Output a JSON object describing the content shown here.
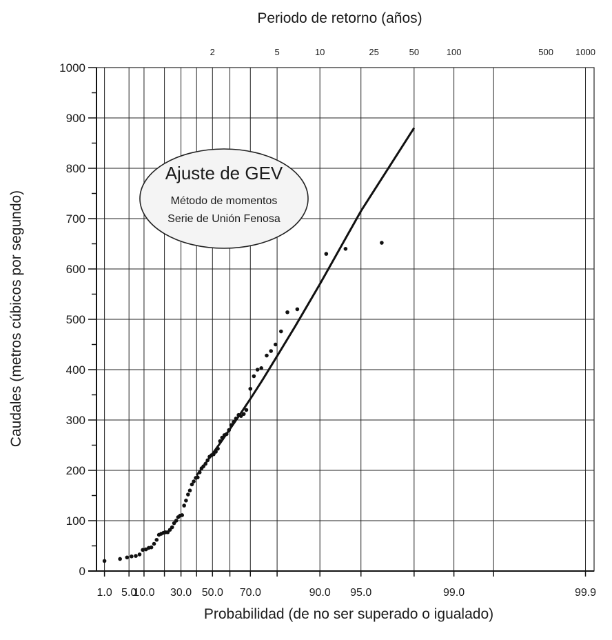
{
  "chart_data": {
    "type": "scatter",
    "title": "Periodo de retorno (años)",
    "xlabel": "Probabilidad (de no ser superado o igualado)",
    "ylabel": "Caudales (metros cúbicos por segundo)",
    "ylim": [
      0,
      1000
    ],
    "y_ticks": [
      0,
      100,
      200,
      300,
      400,
      500,
      600,
      700,
      800,
      900,
      1000
    ],
    "x_scale": "gumbel-probability",
    "grid": true,
    "x_tick_labels": [
      {
        "p": 0.01,
        "label": "1.0"
      },
      {
        "p": 0.05,
        "label": "5.0"
      },
      {
        "p": 0.1,
        "label": "10.0"
      },
      {
        "p": 0.3,
        "label": "30.0"
      },
      {
        "p": 0.5,
        "label": "50.0"
      },
      {
        "p": 0.7,
        "label": "70.0"
      },
      {
        "p": 0.9,
        "label": "90.0"
      },
      {
        "p": 0.95,
        "label": "95.0"
      },
      {
        "p": 0.99,
        "label": "99.0"
      },
      {
        "p": 0.999,
        "label": "99.9"
      }
    ],
    "return_period_ticks": [
      2,
      5,
      10,
      25,
      50,
      100,
      500,
      1000
    ],
    "annotation": {
      "title": "Ajuste de GEV",
      "lines": [
        "Método de momentos",
        "Serie de Unión Fenosa"
      ]
    },
    "series": [
      {
        "kind": "points",
        "values": [
          [
            0.01,
            20
          ],
          [
            0.03,
            24
          ],
          [
            0.045,
            27
          ],
          [
            0.057,
            29
          ],
          [
            0.07,
            30
          ],
          [
            0.083,
            33
          ],
          [
            0.095,
            42
          ],
          [
            0.108,
            43
          ],
          [
            0.12,
            46
          ],
          [
            0.132,
            47
          ],
          [
            0.145,
            54
          ],
          [
            0.158,
            62
          ],
          [
            0.17,
            72
          ],
          [
            0.182,
            74
          ],
          [
            0.195,
            76
          ],
          [
            0.207,
            77
          ],
          [
            0.219,
            77
          ],
          [
            0.232,
            82
          ],
          [
            0.245,
            87
          ],
          [
            0.257,
            95
          ],
          [
            0.27,
            100
          ],
          [
            0.282,
            107
          ],
          [
            0.294,
            110
          ],
          [
            0.307,
            111
          ],
          [
            0.32,
            130
          ],
          [
            0.332,
            140
          ],
          [
            0.345,
            152
          ],
          [
            0.357,
            160
          ],
          [
            0.37,
            172
          ],
          [
            0.382,
            178
          ],
          [
            0.395,
            185
          ],
          [
            0.407,
            186
          ],
          [
            0.42,
            196
          ],
          [
            0.432,
            204
          ],
          [
            0.444,
            208
          ],
          [
            0.457,
            213
          ],
          [
            0.47,
            220
          ],
          [
            0.482,
            227
          ],
          [
            0.494,
            230
          ],
          [
            0.507,
            232
          ],
          [
            0.52,
            237
          ],
          [
            0.532,
            243
          ],
          [
            0.545,
            258
          ],
          [
            0.557,
            265
          ],
          [
            0.57,
            270
          ],
          [
            0.582,
            272
          ],
          [
            0.595,
            280
          ],
          [
            0.607,
            290
          ],
          [
            0.62,
            296
          ],
          [
            0.632,
            303
          ],
          [
            0.645,
            310
          ],
          [
            0.657,
            308
          ],
          [
            0.67,
            312
          ],
          [
            0.682,
            320
          ],
          [
            0.7,
            362
          ],
          [
            0.715,
            387
          ],
          [
            0.73,
            400
          ],
          [
            0.745,
            403
          ],
          [
            0.765,
            428
          ],
          [
            0.78,
            437
          ],
          [
            0.795,
            450
          ],
          [
            0.812,
            476
          ],
          [
            0.83,
            514
          ],
          [
            0.855,
            520
          ],
          [
            0.91,
            630
          ],
          [
            0.935,
            640
          ],
          [
            0.965,
            652
          ]
        ]
      },
      {
        "kind": "fit-line",
        "values": [
          [
            0.4,
            190
          ],
          [
            0.45,
            211
          ],
          [
            0.5,
            233
          ],
          [
            0.55,
            256
          ],
          [
            0.6,
            282
          ],
          [
            0.65,
            310
          ],
          [
            0.7,
            342
          ],
          [
            0.75,
            380
          ],
          [
            0.8,
            427
          ],
          [
            0.85,
            486
          ],
          [
            0.9,
            570
          ],
          [
            0.95,
            715
          ],
          [
            0.98,
            880
          ]
        ]
      }
    ]
  }
}
